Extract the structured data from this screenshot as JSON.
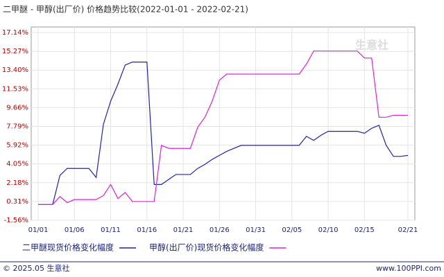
{
  "chart_data": {
    "type": "line",
    "title": "二甲醚 - 甲醇(出厂价) 价格趋势比较(2022-01-01 - 2022-02-21)",
    "watermark": "生意社",
    "categories": [
      "01/01",
      null,
      null,
      null,
      null,
      "01/06",
      null,
      null,
      null,
      null,
      "01/11",
      null,
      null,
      null,
      null,
      "01/16",
      null,
      null,
      null,
      null,
      "01/21",
      null,
      null,
      null,
      null,
      "01/26",
      null,
      null,
      null,
      null,
      "01/31",
      null,
      null,
      null,
      null,
      "02/05",
      null,
      null,
      null,
      null,
      "02/10",
      null,
      null,
      null,
      null,
      "02/15",
      null,
      null,
      null,
      null,
      null,
      "02/21"
    ],
    "series": [
      {
        "name": "二甲醚现货价格变化幅度",
        "color": "#1f1fbf",
        "values": [
          0,
          0,
          0,
          2.9,
          3.6,
          3.6,
          3.6,
          3.6,
          2.7,
          8.0,
          10.3,
          12.0,
          13.9,
          14.2,
          14.2,
          14.2,
          2.0,
          2.0,
          2.5,
          3.0,
          3.0,
          3.0,
          3.6,
          4.0,
          4.5,
          4.9,
          5.3,
          5.6,
          5.9,
          5.9,
          5.9,
          5.9,
          5.9,
          5.9,
          5.9,
          5.9,
          5.9,
          6.8,
          6.4,
          6.9,
          7.3,
          7.3,
          7.3,
          7.3,
          7.3,
          7.1,
          7.6,
          7.9,
          5.9,
          4.8,
          4.8,
          4.9
        ]
      },
      {
        "name": "甲醇(出厂价)现货价格变化幅度",
        "color": "#e020e0",
        "values": [
          0,
          0,
          0,
          0.8,
          0.2,
          0.5,
          0.5,
          0.5,
          0.5,
          0.9,
          2.0,
          0.6,
          1.2,
          0.3,
          0.3,
          0.3,
          0.3,
          5.9,
          5.6,
          5.6,
          5.6,
          5.6,
          7.7,
          8.7,
          10.3,
          12.4,
          13.0,
          13.0,
          13.0,
          13.0,
          13.0,
          13.0,
          13.0,
          13.0,
          13.0,
          13.0,
          13.0,
          14.0,
          15.3,
          15.3,
          15.3,
          15.3,
          15.3,
          15.3,
          15.3,
          14.6,
          14.6,
          8.7,
          8.7,
          8.9,
          8.9,
          8.9
        ]
      }
    ],
    "ylim": [
      -1.56,
      17.14
    ],
    "yticks": [
      {
        "value": 17.14,
        "label": "17.14%"
      },
      {
        "value": 15.27,
        "label": "15.27%"
      },
      {
        "value": 13.4,
        "label": "13.40%"
      },
      {
        "value": 11.53,
        "label": "11.53%"
      },
      {
        "value": 9.66,
        "label": "9.66%"
      },
      {
        "value": 7.79,
        "label": "7.79%"
      },
      {
        "value": 5.92,
        "label": "5.92%"
      },
      {
        "value": 4.05,
        "label": "4.05%"
      },
      {
        "value": 2.18,
        "label": "2.18%"
      },
      {
        "value": 0.31,
        "label": "0.31%"
      },
      {
        "value": -1.56,
        "label": "-1.56%"
      }
    ],
    "grid": true,
    "footer_left": "© 2025.05 生意社",
    "footer_right": "www.100PPI.com"
  }
}
